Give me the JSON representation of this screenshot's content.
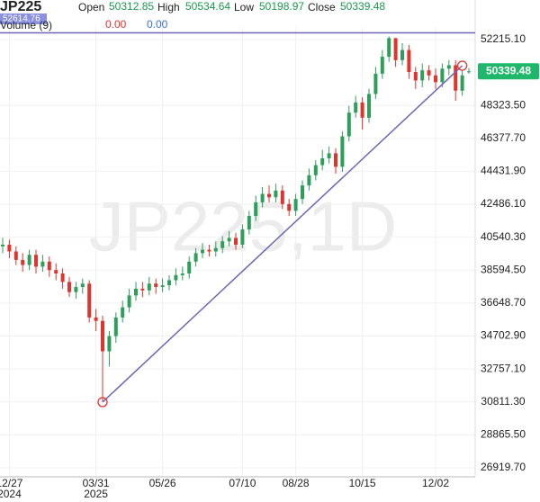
{
  "chart_data": {
    "type": "candlestick",
    "title": "JP225",
    "watermark": "JP225,1D",
    "ohlc_labels": [
      "Open",
      "High",
      "Low",
      "Close"
    ],
    "volume_label": "Volume (9)",
    "volume_values": [
      {
        "value": 0,
        "label": "0.00"
      },
      {
        "value": 0,
        "label": "0.00"
      }
    ],
    "categories": [
      null,
      "12/27",
      null,
      null,
      null,
      null,
      null,
      null,
      null,
      null,
      null,
      null,
      null,
      null,
      "03/31",
      null,
      null,
      null,
      null,
      null,
      null,
      null,
      null,
      null,
      "05/26",
      null,
      null,
      null,
      null,
      null,
      null,
      null,
      null,
      null,
      null,
      null,
      "07/10",
      null,
      null,
      null,
      null,
      null,
      null,
      null,
      "08/28",
      null,
      null,
      null,
      null,
      null,
      null,
      null,
      null,
      null,
      "10/15",
      null,
      null,
      null,
      null,
      null,
      null,
      null,
      null,
      null,
      null,
      "12/02",
      null,
      null,
      null,
      null,
      null
    ],
    "category_years": [
      null,
      "2024",
      null,
      null,
      null,
      null,
      null,
      null,
      null,
      null,
      null,
      null,
      null,
      null,
      "2025",
      null,
      null,
      null,
      null,
      null,
      null,
      null,
      null,
      null,
      null,
      null,
      null,
      null,
      null,
      null,
      null,
      null,
      null,
      null,
      null,
      null,
      null,
      null,
      null,
      null,
      null,
      null,
      null,
      null,
      null,
      null,
      null,
      null,
      null,
      null,
      null,
      null,
      null,
      null,
      null,
      null,
      null,
      null,
      null,
      null,
      null,
      null,
      null,
      null,
      null,
      null,
      null,
      null,
      null,
      null,
      null
    ],
    "open": [
      40000,
      40100,
      39700,
      39200,
      38900,
      39500,
      38800,
      39100,
      38600,
      38400,
      37900,
      37300,
      37600,
      37800,
      35800,
      35600,
      33800,
      34700,
      35800,
      36400,
      37100,
      37500,
      37400,
      37800,
      37600,
      37700,
      38000,
      38300,
      38400,
      39100,
      39600,
      39800,
      39700,
      39900,
      40300,
      40500,
      40100,
      41000,
      41800,
      42600,
      43100,
      42900,
      43300,
      42500,
      42100,
      42800,
      43600,
      44200,
      44800,
      45200,
      45500,
      44700,
      46500,
      47900,
      48500,
      47600,
      49000,
      50200,
      51200,
      52300,
      51000,
      51600,
      50300,
      49800,
      50400,
      50100,
      49700,
      50500,
      50700,
      49200,
      50312.85
    ],
    "high": [
      40500,
      40400,
      40000,
      39600,
      39800,
      39800,
      39500,
      39400,
      39000,
      38700,
      38200,
      37900,
      38100,
      38000,
      36300,
      35900,
      35000,
      36100,
      36800,
      37500,
      37900,
      37900,
      38200,
      38100,
      38100,
      38300,
      38700,
      38800,
      39400,
      39900,
      40200,
      40100,
      40300,
      40600,
      40900,
      40800,
      41300,
      42100,
      43000,
      43500,
      43600,
      43700,
      43600,
      42800,
      43100,
      43900,
      44600,
      45100,
      45700,
      45900,
      45800,
      46800,
      48300,
      48900,
      48800,
      49300,
      50600,
      51600,
      52400,
      52300,
      52000,
      51900,
      50600,
      50800,
      50700,
      50500,
      50800,
      51000,
      51000,
      50400,
      50534.64
    ],
    "low": [
      39600,
      39300,
      38900,
      38500,
      38600,
      38400,
      38500,
      38200,
      38000,
      37500,
      37000,
      36900,
      37200,
      35500,
      35000,
      30800,
      32900,
      34300,
      35500,
      36100,
      36800,
      37000,
      37100,
      37200,
      37300,
      37400,
      37700,
      38000,
      38100,
      38800,
      39300,
      39400,
      39400,
      39600,
      40000,
      39800,
      39900,
      40700,
      41500,
      42300,
      42600,
      42600,
      42200,
      41800,
      41800,
      42500,
      43300,
      43900,
      44500,
      44900,
      44300,
      44400,
      46200,
      47600,
      46900,
      47300,
      48700,
      49900,
      50900,
      50600,
      50700,
      49900,
      49300,
      49400,
      49800,
      49300,
      49400,
      50100,
      48600,
      48900,
      50198.97
    ],
    "close": [
      40100,
      39700,
      39200,
      38900,
      39500,
      38800,
      39100,
      38600,
      38400,
      37900,
      37300,
      37600,
      37800,
      35800,
      35600,
      33800,
      34700,
      35800,
      36400,
      37100,
      37500,
      37400,
      37800,
      37600,
      37700,
      38000,
      38300,
      38400,
      39100,
      39600,
      39800,
      39700,
      39900,
      40300,
      40500,
      40100,
      41000,
      41800,
      42600,
      43100,
      42900,
      43300,
      42500,
      42100,
      42800,
      43600,
      44200,
      44800,
      45200,
      45500,
      44700,
      46500,
      47900,
      48500,
      47600,
      49000,
      50200,
      51200,
      52300,
      51000,
      51600,
      50300,
      49800,
      50400,
      50100,
      49700,
      50500,
      50700,
      49200,
      50100,
      50339.48
    ],
    "up_color": "#2e9e5b",
    "down_color": "#e0342f",
    "ylim": [
      26388,
      52959
    ],
    "yticks": [
      {
        "value": 52215.1,
        "label": "52215.10"
      },
      {
        "value": 48323.5,
        "label": "48323.50"
      },
      {
        "value": 46377.7,
        "label": "46377.70"
      },
      {
        "value": 44431.9,
        "label": "44431.90"
      },
      {
        "value": 42486.1,
        "label": "42486.10"
      },
      {
        "value": 40540.3,
        "label": "40540.30"
      },
      {
        "value": 38594.5,
        "label": "38594.50"
      },
      {
        "value": 36648.7,
        "label": "36648.70"
      },
      {
        "value": 34702.9,
        "label": "34702.90"
      },
      {
        "value": 32757.1,
        "label": "32757.10"
      },
      {
        "value": 30811.3,
        "label": "30811.30"
      },
      {
        "value": 28865.5,
        "label": "28865.50"
      },
      {
        "value": 26919.7,
        "label": "26919.70"
      }
    ],
    "horizontal_line": 52614.76,
    "trend_line": [
      {
        "category": 15,
        "value": 30800
      },
      {
        "category": 69,
        "value": 50674
      }
    ],
    "line_color": "#6b67b8",
    "grid": true
  }
}
